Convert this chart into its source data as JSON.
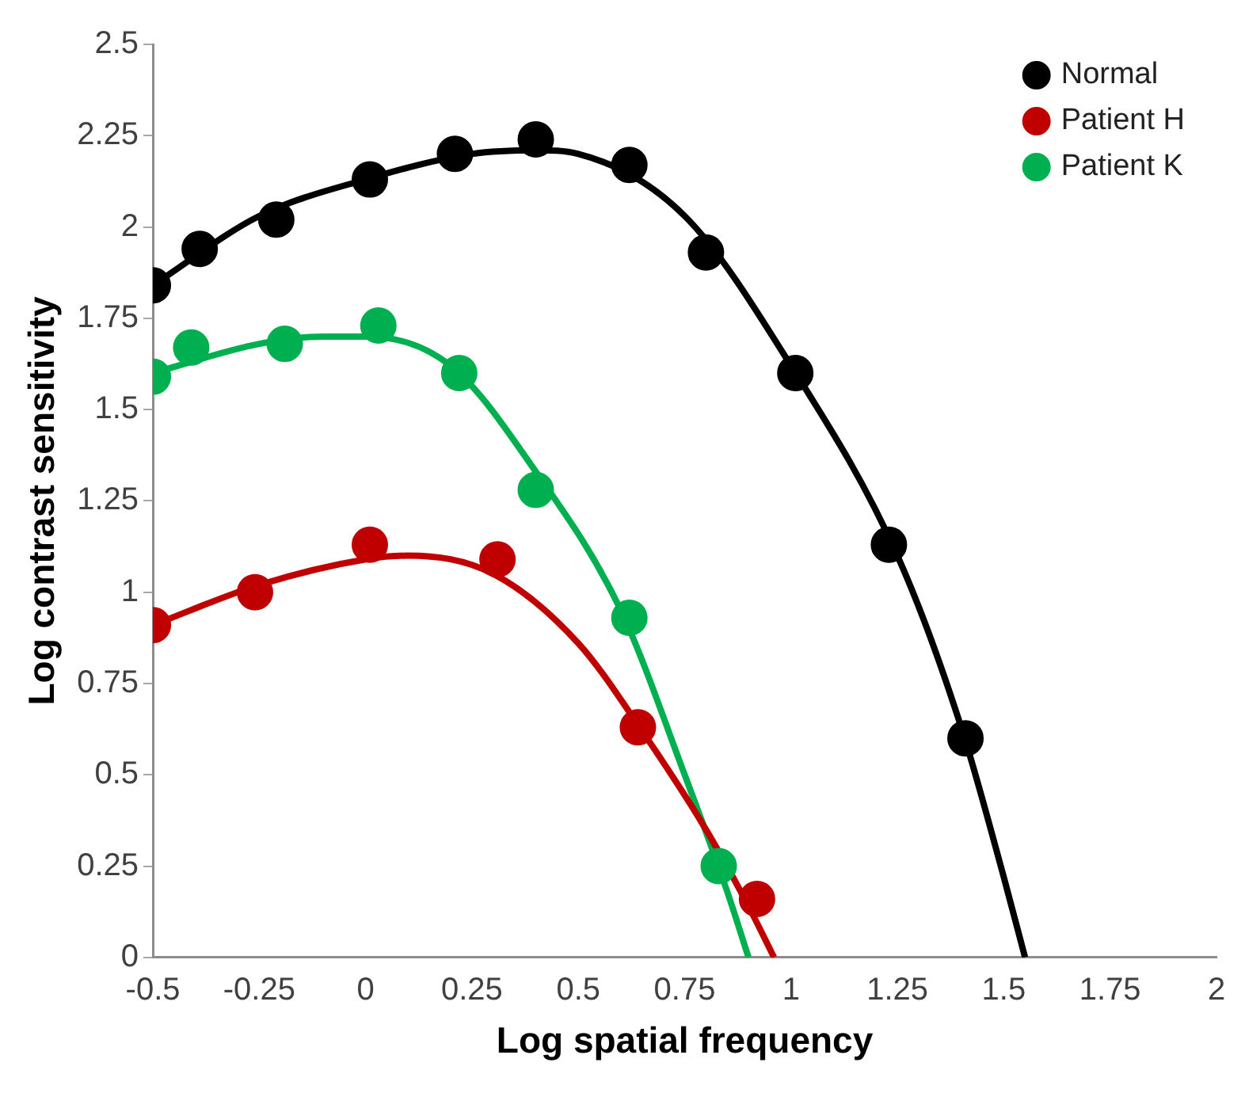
{
  "chart_data": {
    "type": "scatter",
    "xlabel": "Log spatial frequency",
    "ylabel": "Log contrast sensitivity",
    "xlim": [
      -0.5,
      2
    ],
    "xticks": [
      -0.5,
      -0.25,
      0,
      0.25,
      0.5,
      0.75,
      1,
      1.25,
      1.5,
      1.75,
      2
    ],
    "ylim": [
      0,
      2.5
    ],
    "yticks": [
      0,
      0.25,
      0.5,
      0.75,
      1,
      1.25,
      1.5,
      1.75,
      2,
      2.25,
      2.5
    ],
    "grid": false,
    "legend": "top right",
    "marker": "circle",
    "series": [
      {
        "name": "Normal",
        "color": "#000000",
        "x": [
          -0.5,
          -0.39,
          -0.21,
          0.01,
          0.21,
          0.4,
          0.62,
          0.8,
          1.01,
          1.23,
          1.41
        ],
        "values": [
          1.84,
          1.94,
          2.02,
          2.13,
          2.2,
          2.24,
          2.17,
          1.93,
          1.6,
          1.13,
          0.6
        ]
      },
      {
        "name": "Patient H",
        "color": "#c00000",
        "x": [
          -0.5,
          -0.26,
          0.01,
          0.31,
          0.64,
          0.92
        ],
        "values": [
          0.91,
          1.0,
          1.13,
          1.09,
          0.63,
          0.16
        ]
      },
      {
        "name": "Patient K",
        "color": "#00b050",
        "x": [
          -0.5,
          -0.41,
          -0.19,
          0.03,
          0.22,
          0.4,
          0.62,
          0.83
        ],
        "values": [
          1.59,
          1.67,
          1.68,
          1.73,
          1.6,
          1.28,
          0.93,
          0.25
        ]
      },
      {
        "type": "line",
        "marker": "none",
        "line_style": "solid",
        "color": "#000000",
        "x": [
          -0.5,
          -0.25,
          0,
          0.25,
          0.4,
          0.5,
          0.75,
          1,
          1.25,
          1.4,
          1.5,
          1.55
        ],
        "values": [
          1.84,
          2.03,
          2.13,
          2.2,
          2.21,
          2.2,
          2.03,
          1.62,
          1.1,
          0.63,
          0.22,
          0
        ]
      },
      {
        "type": "line",
        "marker": "none",
        "line_style": "solid",
        "color": "#c00000",
        "x": [
          -0.5,
          -0.25,
          0,
          0.1,
          0.3,
          0.5,
          0.65,
          0.8,
          0.9,
          0.96
        ],
        "values": [
          0.91,
          1.02,
          1.09,
          1.1,
          1.05,
          0.86,
          0.62,
          0.35,
          0.14,
          0
        ]
      },
      {
        "type": "line",
        "marker": "none",
        "line_style": "solid",
        "color": "#00b050",
        "x": [
          -0.5,
          -0.25,
          -0.1,
          0,
          0.2,
          0.4,
          0.6,
          0.75,
          0.85,
          0.9
        ],
        "values": [
          1.6,
          1.68,
          1.7,
          1.7,
          1.62,
          1.33,
          0.95,
          0.5,
          0.18,
          0
        ]
      }
    ]
  }
}
